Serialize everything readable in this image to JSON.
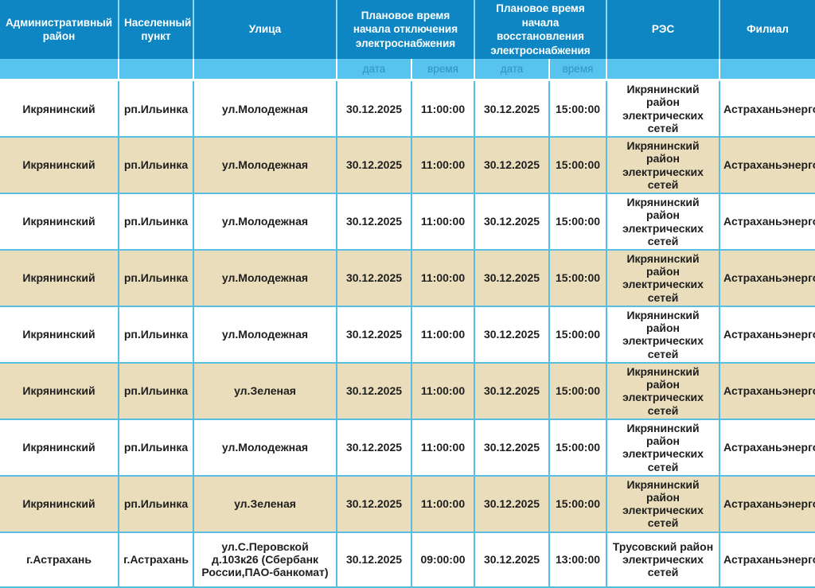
{
  "colors": {
    "header_bg": "#0e86c3",
    "subheader_bg": "#58c3ef",
    "subheader_text": "#2e94c6",
    "grid_line": "#58bfe2",
    "alt_row_bg": "#eaddbb",
    "row_bg": "#ffffff",
    "header_text": "#ffffff",
    "cell_text": "#1e1e1e"
  },
  "table": {
    "columns": [
      "Административный район",
      "Населенный пункт",
      "Улица",
      "Плановое время начала отключения электроснабжения",
      "Плановое время начала восстановления электроснабжения",
      "РЭС",
      "Филиал"
    ],
    "subheaders": [
      "дата",
      "время",
      "дата",
      "время"
    ],
    "rows": [
      [
        "Икрянинский",
        "рп.Ильинка",
        "ул.Молодежная",
        "30.12.2025",
        "11:00:00",
        "30.12.2025",
        "15:00:00",
        "Икрянинский район электрических сетей",
        "Астраханьэнерго"
      ],
      [
        "Икрянинский",
        "рп.Ильинка",
        "ул.Молодежная",
        "30.12.2025",
        "11:00:00",
        "30.12.2025",
        "15:00:00",
        "Икрянинский район электрических сетей",
        "Астраханьэнерго"
      ],
      [
        "Икрянинский",
        "рп.Ильинка",
        "ул.Молодежная",
        "30.12.2025",
        "11:00:00",
        "30.12.2025",
        "15:00:00",
        "Икрянинский район электрических сетей",
        "Астраханьэнерго"
      ],
      [
        "Икрянинский",
        "рп.Ильинка",
        "ул.Молодежная",
        "30.12.2025",
        "11:00:00",
        "30.12.2025",
        "15:00:00",
        "Икрянинский район электрических сетей",
        "Астраханьэнерго"
      ],
      [
        "Икрянинский",
        "рп.Ильинка",
        "ул.Молодежная",
        "30.12.2025",
        "11:00:00",
        "30.12.2025",
        "15:00:00",
        "Икрянинский район электрических сетей",
        "Астраханьэнерго"
      ],
      [
        "Икрянинский",
        "рп.Ильинка",
        "ул.Зеленая",
        "30.12.2025",
        "11:00:00",
        "30.12.2025",
        "15:00:00",
        "Икрянинский район электрических сетей",
        "Астраханьэнерго"
      ],
      [
        "Икрянинский",
        "рп.Ильинка",
        "ул.Молодежная",
        "30.12.2025",
        "11:00:00",
        "30.12.2025",
        "15:00:00",
        "Икрянинский район электрических сетей",
        "Астраханьэнерго"
      ],
      [
        "Икрянинский",
        "рп.Ильинка",
        "ул.Зеленая",
        "30.12.2025",
        "11:00:00",
        "30.12.2025",
        "15:00:00",
        "Икрянинский район электрических сетей",
        "Астраханьэнерго"
      ],
      [
        "г.Астрахань",
        "г.Астрахань",
        "ул.С.Перовской д.103к26 (Сбербанк России,ПАО-банкомат)",
        "30.12.2025",
        "09:00:00",
        "30.12.2025",
        "13:00:00",
        "Трусовский район электрических сетей",
        "Астраханьэнерго"
      ]
    ]
  }
}
